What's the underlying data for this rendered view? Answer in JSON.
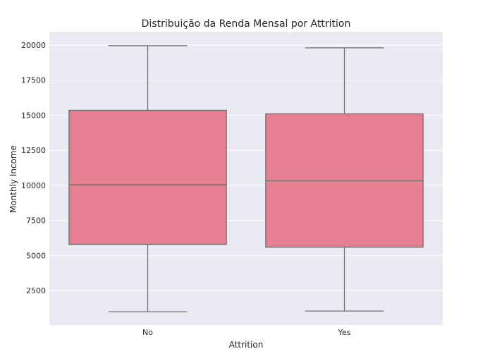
{
  "chart_data": {
    "type": "box",
    "title": "Distribuição da Renda Mensal por Attrition",
    "xlabel": "Attrition",
    "ylabel": "Monthly Income",
    "categories": [
      "No",
      "Yes"
    ],
    "boxes": [
      {
        "category": "No",
        "whisker_low": 1000,
        "q1": 5800,
        "median": 10050,
        "q3": 15350,
        "whisker_high": 19950
      },
      {
        "category": "Yes",
        "whisker_low": 1050,
        "q1": 5600,
        "median": 10330,
        "q3": 15100,
        "whisker_high": 19800
      }
    ],
    "yticks": [
      2500,
      5000,
      7500,
      10000,
      12500,
      15000,
      17500,
      20000
    ],
    "ylim": [
      50,
      20950
    ],
    "grid": true,
    "colors": {
      "background": "#eaeaf2",
      "box_fill": "#e67f91",
      "line": "#6e6e6e",
      "grid": "#ffffff"
    }
  }
}
